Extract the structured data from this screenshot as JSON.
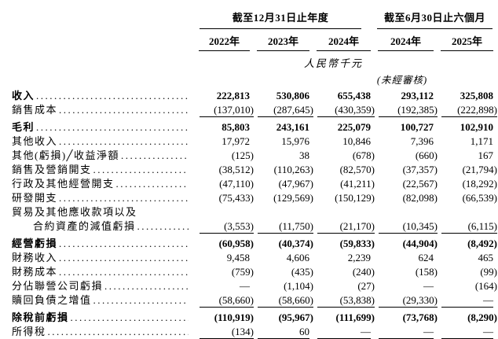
{
  "page": {
    "background": "#ffffff",
    "text_color": "#000000"
  },
  "table": {
    "period_groups": [
      {
        "label": "截至12月31日止年度"
      },
      {
        "label": "截至6月30日止六個月"
      }
    ],
    "year_columns": [
      {
        "label": "2022年"
      },
      {
        "label": "2023年"
      },
      {
        "label": "2024年"
      },
      {
        "label": "2024年"
      },
      {
        "label": "2025年"
      }
    ],
    "currency_note": "人民幣千元",
    "unaudited_note": "(未經審核)",
    "rows": [
      {
        "label": "收入",
        "bold": true,
        "values": [
          "222,813",
          "530,806",
          "655,438",
          "293,112",
          "325,808"
        ]
      },
      {
        "label": "銷售成本",
        "rule_below": true,
        "values": [
          "(137,010)",
          "(287,645)",
          "(430,359)",
          "(192,385)",
          "(222,898)"
        ]
      },
      {
        "label": "毛利",
        "bold": true,
        "values": [
          "85,803",
          "243,161",
          "225,079",
          "100,727",
          "102,910"
        ]
      },
      {
        "label": "其他收入",
        "values": [
          "17,972",
          "15,976",
          "10,846",
          "7,396",
          "1,171"
        ]
      },
      {
        "label": "其他(虧損)╱收益淨額",
        "values": [
          "(125)",
          "38",
          "(678)",
          "(660)",
          "167"
        ]
      },
      {
        "label": "銷售及營銷開支",
        "values": [
          "(38,512)",
          "(110,263)",
          "(82,570)",
          "(37,357)",
          "(21,794)"
        ]
      },
      {
        "label": "行政及其他經營開支",
        "values": [
          "(47,110)",
          "(47,967)",
          "(41,211)",
          "(22,567)",
          "(18,292)"
        ]
      },
      {
        "label": "研發開支",
        "values": [
          "(75,433)",
          "(129,569)",
          "(150,129)",
          "(82,098)",
          "(66,539)"
        ]
      },
      {
        "label": "貿易及其他應收款項以及",
        "continuation_head": true,
        "values": []
      },
      {
        "label": "合約資產的減值虧損",
        "indent": true,
        "rule_below": true,
        "values": [
          "(3,553)",
          "(11,750)",
          "(21,170)",
          "(10,345)",
          "(6,115)"
        ]
      },
      {
        "label": "經營虧損",
        "bold": true,
        "values": [
          "(60,958)",
          "(40,374)",
          "(59,833)",
          "(44,904)",
          "(8,492)"
        ]
      },
      {
        "label": "財務收入",
        "values": [
          "9,458",
          "4,606",
          "2,239",
          "624",
          "465"
        ]
      },
      {
        "label": "財務成本",
        "values": [
          "(759)",
          "(435)",
          "(240)",
          "(158)",
          "(99)"
        ]
      },
      {
        "label": "分佔聯營公司虧損",
        "values": [
          "—",
          "(1,104)",
          "(27)",
          "—",
          "(164)"
        ]
      },
      {
        "label": "贖回負債之增值",
        "rule_below": true,
        "values": [
          "(58,660)",
          "(58,660)",
          "(53,838)",
          "(29,330)",
          "—"
        ]
      },
      {
        "label": "除稅前虧損",
        "bold": true,
        "values": [
          "(110,919)",
          "(95,967)",
          "(111,699)",
          "(73,768)",
          "(8,290)"
        ]
      },
      {
        "label": "所得稅",
        "rule_below": true,
        "values": [
          "(134)",
          "60",
          "—",
          "—",
          "—"
        ]
      }
    ]
  }
}
